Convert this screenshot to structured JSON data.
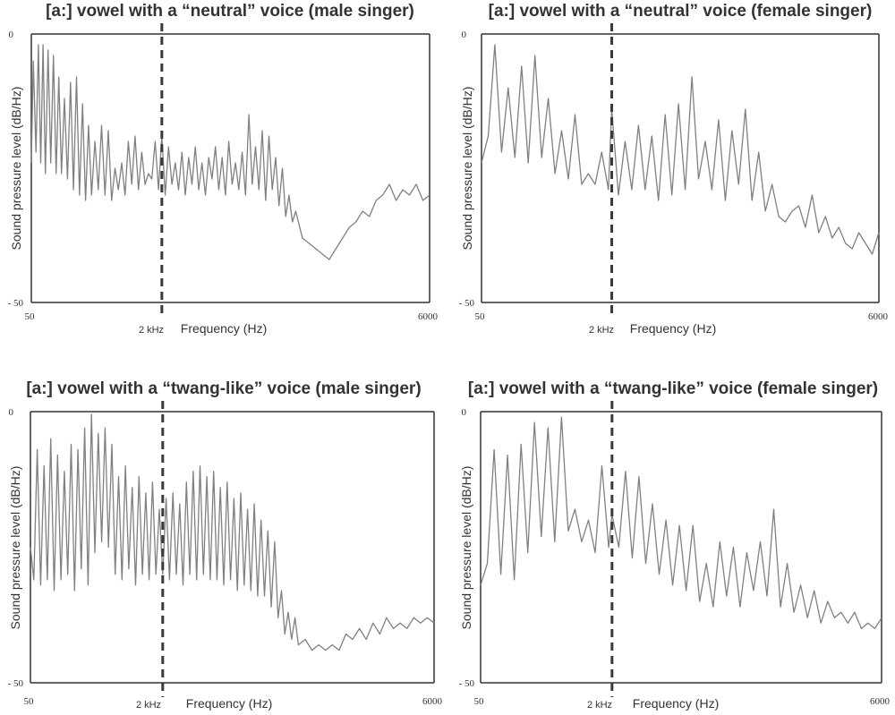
{
  "chart_data": [
    {
      "type": "line",
      "title": "[a:] vowel with a “neutral” voice (male singer)",
      "xlabel": "Frequency (Hz)",
      "ylabel": "Sound pressure level (dB/Hz)",
      "xlim": [
        50,
        6000
      ],
      "ylim": [
        -50,
        0
      ],
      "x_tick_labels": [
        "50",
        "6000"
      ],
      "y_tick_labels": [
        "0",
        "- 50"
      ],
      "marker": {
        "x": 2000,
        "label": "2 kHz",
        "style": "dashed"
      },
      "series": [
        {
          "x": [
            50,
            80,
            120,
            155,
            190,
            225,
            260,
            300,
            340,
            380,
            420,
            460,
            500,
            545,
            590,
            635,
            680,
            725,
            770,
            815,
            860,
            905,
            950,
            1000,
            1050,
            1100,
            1150,
            1200,
            1250,
            1300,
            1350,
            1400,
            1450,
            1500,
            1550,
            1600,
            1650,
            1700,
            1750,
            1800,
            1850,
            1900,
            1950,
            2000,
            2050,
            2100,
            2150,
            2200,
            2250,
            2300,
            2350,
            2400,
            2450,
            2500,
            2550,
            2600,
            2650,
            2700,
            2750,
            2800,
            2850,
            2900,
            2950,
            3000,
            3050,
            3100,
            3150,
            3200,
            3250,
            3300,
            3350,
            3400,
            3450,
            3500,
            3550,
            3600,
            3650,
            3700,
            3750,
            3800,
            3850,
            3900,
            3950,
            4000,
            4100,
            4200,
            4300,
            4400,
            4500,
            4600,
            4700,
            4800,
            4900,
            5000,
            5100,
            5200,
            5300,
            5400,
            5500,
            5600,
            5700,
            5800,
            5900,
            6000
          ],
          "y": [
            -24,
            -5,
            -22,
            -2,
            -24,
            -2,
            -26,
            -3,
            -24,
            -4,
            -26,
            -8,
            -26,
            -12,
            -27,
            -9,
            -29,
            -8,
            -30,
            -13,
            -31,
            -17,
            -30,
            -20,
            -29,
            -17,
            -30,
            -18,
            -31,
            -25,
            -29,
            -24,
            -30,
            -20,
            -28,
            -19,
            -29,
            -22,
            -28,
            -26,
            -27,
            -20,
            -29,
            -19,
            -30,
            -21,
            -28,
            -24,
            -29,
            -22,
            -30,
            -23,
            -28,
            -21,
            -29,
            -24,
            -30,
            -23,
            -27,
            -21,
            -29,
            -23,
            -30,
            -20,
            -28,
            -24,
            -29,
            -22,
            -30,
            -15,
            -28,
            -21,
            -29,
            -18,
            -31,
            -19,
            -29,
            -23,
            -32,
            -25,
            -34,
            -30,
            -35,
            -33,
            -38,
            -39,
            -40,
            -41,
            -42,
            -40,
            -38,
            -36,
            -35,
            -33,
            -34,
            -31,
            -30,
            -28,
            -31,
            -29,
            -30,
            -28,
            -31,
            -30
          ]
        }
      ]
    },
    {
      "type": "line",
      "title": "[a:] vowel with a “neutral” voice (female singer)",
      "xlabel": "Frequency (Hz)",
      "ylabel": "Sound pressure level (dB/Hz)",
      "xlim": [
        50,
        6000
      ],
      "ylim": [
        -50,
        0
      ],
      "x_tick_labels": [
        "50",
        "6000"
      ],
      "y_tick_labels": [
        "0",
        "- 50"
      ],
      "marker": {
        "x": 2000,
        "label": "2 kHz",
        "style": "dashed"
      },
      "series": [
        {
          "x": [
            50,
            150,
            250,
            350,
            450,
            550,
            650,
            750,
            850,
            950,
            1050,
            1150,
            1250,
            1350,
            1450,
            1550,
            1650,
            1750,
            1850,
            1950,
            2000,
            2100,
            2200,
            2300,
            2400,
            2500,
            2600,
            2700,
            2800,
            2900,
            3000,
            3100,
            3200,
            3300,
            3400,
            3500,
            3600,
            3700,
            3800,
            3900,
            4000,
            4100,
            4200,
            4300,
            4400,
            4500,
            4600,
            4700,
            4800,
            4900,
            5000,
            5100,
            5200,
            5300,
            5400,
            5500,
            5600,
            5700,
            5800,
            5900,
            6000
          ],
          "y": [
            -24,
            -19,
            -2,
            -22,
            -10,
            -23,
            -6,
            -24,
            -4,
            -23,
            -12,
            -26,
            -18,
            -27,
            -15,
            -28,
            -26,
            -28,
            -22,
            -29,
            -14,
            -30,
            -20,
            -29,
            -17,
            -29,
            -19,
            -31,
            -15,
            -30,
            -13,
            -29,
            -8,
            -27,
            -20,
            -29,
            -16,
            -31,
            -18,
            -28,
            -14,
            -31,
            -22,
            -33,
            -28,
            -34,
            -35,
            -33,
            -32,
            -36,
            -30,
            -37,
            -34,
            -38,
            -36,
            -39,
            -40,
            -37,
            -39,
            -41,
            -37
          ]
        }
      ]
    },
    {
      "type": "line",
      "title": "[a:] vowel with a “twang-like” voice (male singer)",
      "xlabel": "Frequency (Hz)",
      "ylabel": "Sound pressure level (dB/Hz)",
      "xlim": [
        50,
        6000
      ],
      "ylim": [
        -50,
        0
      ],
      "x_tick_labels": [
        "50",
        "6000"
      ],
      "y_tick_labels": [
        "0",
        "- 50"
      ],
      "marker": {
        "x": 2000,
        "label": "2 kHz",
        "style": "dashed"
      },
      "series": [
        {
          "x": [
            50,
            100,
            150,
            200,
            250,
            300,
            350,
            400,
            450,
            500,
            550,
            600,
            650,
            700,
            750,
            800,
            850,
            900,
            950,
            1000,
            1050,
            1100,
            1150,
            1200,
            1250,
            1300,
            1350,
            1400,
            1450,
            1500,
            1550,
            1600,
            1650,
            1700,
            1750,
            1800,
            1850,
            1900,
            1950,
            2000,
            2050,
            2100,
            2150,
            2200,
            2250,
            2300,
            2350,
            2400,
            2450,
            2500,
            2550,
            2600,
            2650,
            2700,
            2750,
            2800,
            2850,
            2900,
            2950,
            3000,
            3050,
            3100,
            3150,
            3200,
            3250,
            3300,
            3350,
            3400,
            3450,
            3500,
            3550,
            3600,
            3650,
            3700,
            3750,
            3800,
            3850,
            3900,
            3950,
            4000,
            4100,
            4200,
            4300,
            4400,
            4500,
            4600,
            4700,
            4800,
            4900,
            5000,
            5100,
            5200,
            5300,
            5400,
            5500,
            5600,
            5700,
            5800,
            5900,
            6000
          ],
          "y": [
            -25,
            -31,
            -7,
            -32,
            -10,
            -31,
            -5,
            -33,
            -8,
            -31,
            -11,
            -30,
            -6,
            -33,
            -7,
            -29,
            -3,
            -32,
            -0.5,
            -26,
            -4,
            -24,
            -3,
            -25,
            -6,
            -30,
            -12,
            -31,
            -10,
            -29,
            -14,
            -32,
            -12,
            -30,
            -15,
            -31,
            -13,
            -30,
            -18,
            -30,
            -16,
            -31,
            -15,
            -30,
            -17,
            -32,
            -13,
            -30,
            -11,
            -31,
            -10,
            -30,
            -12,
            -31,
            -11,
            -31,
            -14,
            -32,
            -13,
            -31,
            -16,
            -33,
            -15,
            -32,
            -18,
            -33,
            -17,
            -34,
            -20,
            -34,
            -22,
            -36,
            -24,
            -38,
            -33,
            -41,
            -37,
            -42,
            -38,
            -43,
            -42,
            -44,
            -43,
            -44,
            -43,
            -44,
            -41,
            -42,
            -40,
            -42,
            -39,
            -41,
            -38,
            -40,
            -39,
            -40,
            -38,
            -39,
            -38,
            -39
          ]
        }
      ]
    },
    {
      "type": "line",
      "title": "[a:] vowel with a “twang-like” voice (female singer)",
      "xlabel": "Frequency (Hz)",
      "ylabel": "Sound pressure level (dB/Hz)",
      "xlim": [
        50,
        6000
      ],
      "ylim": [
        -50,
        0
      ],
      "x_tick_labels": [
        "50",
        "6000"
      ],
      "y_tick_labels": [
        "0",
        "- 50"
      ],
      "marker": {
        "x": 2000,
        "label": "2 kHz",
        "style": "dashed"
      },
      "series": [
        {
          "x": [
            50,
            150,
            250,
            350,
            450,
            550,
            650,
            750,
            850,
            950,
            1050,
            1150,
            1250,
            1350,
            1450,
            1550,
            1650,
            1750,
            1850,
            1950,
            2000,
            2100,
            2200,
            2300,
            2400,
            2500,
            2600,
            2700,
            2800,
            2900,
            3000,
            3100,
            3200,
            3300,
            3400,
            3500,
            3600,
            3700,
            3800,
            3900,
            4000,
            4100,
            4200,
            4300,
            4400,
            4500,
            4600,
            4700,
            4800,
            4900,
            5000,
            5100,
            5200,
            5300,
            5400,
            5500,
            5600,
            5700,
            5800,
            5900,
            6000
          ],
          "y": [
            -32,
            -28,
            -7,
            -30,
            -8,
            -31,
            -6,
            -26,
            -2,
            -23,
            -3,
            -24,
            -1,
            -22,
            -18,
            -24,
            -20,
            -26,
            -10,
            -25,
            -19,
            -25,
            -11,
            -27,
            -12,
            -28,
            -17,
            -30,
            -20,
            -32,
            -21,
            -33,
            -21,
            -35,
            -28,
            -36,
            -24,
            -34,
            -25,
            -36,
            -26,
            -33,
            -24,
            -34,
            -18,
            -36,
            -28,
            -37,
            -32,
            -38,
            -33,
            -39,
            -35,
            -38,
            -37,
            -39,
            -37,
            -40,
            -39,
            -40,
            -38
          ]
        }
      ]
    }
  ]
}
